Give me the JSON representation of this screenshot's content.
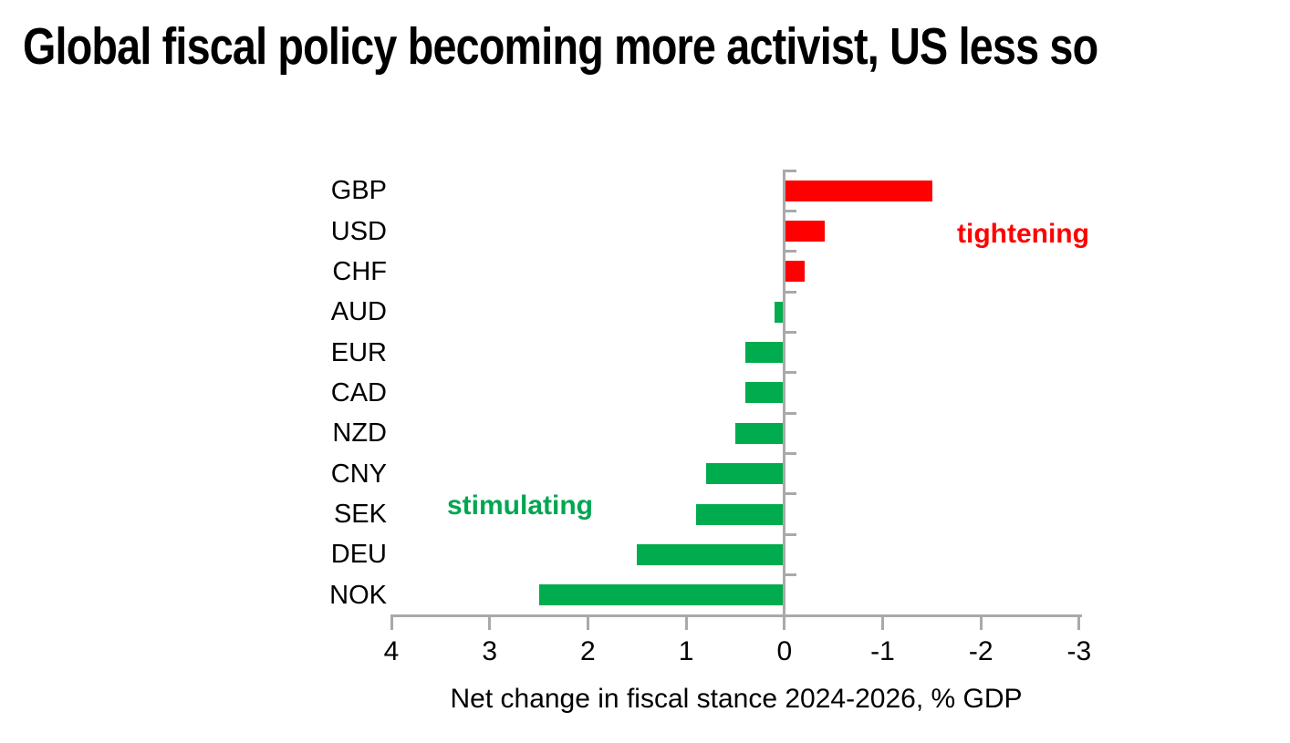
{
  "chart_data": {
    "type": "bar",
    "orientation": "horizontal",
    "title": "Global fiscal policy becoming more activist, US less so",
    "xlabel": "Net change in fiscal stance 2024-2026, % GDP",
    "categories": [
      "GBP",
      "USD",
      "CHF",
      "AUD",
      "EUR",
      "CAD",
      "NZD",
      "CNY",
      "SEK",
      "DEU",
      "NOK"
    ],
    "values": [
      -1.5,
      -0.4,
      -0.2,
      0.1,
      0.4,
      0.4,
      0.5,
      0.8,
      0.9,
      1.5,
      2.5
    ],
    "x_ticks": [
      4,
      3,
      2,
      1,
      0,
      -1,
      -2,
      -3
    ],
    "xlim": [
      4,
      -3
    ],
    "axis_reversed": true,
    "grid": false,
    "legend": "none",
    "annotations": [
      {
        "id": "tightening",
        "text": "tightening",
        "color": "#FF0000",
        "side": "right"
      },
      {
        "id": "stimulating",
        "text": "stimulating",
        "color": "#00A651",
        "side": "left"
      }
    ],
    "colors": {
      "positive_bar": "#00AC4E",
      "negative_bar": "#FF0000",
      "axis": "#A9A9A9",
      "title_text": "#000000",
      "label_text": "#000000"
    }
  }
}
